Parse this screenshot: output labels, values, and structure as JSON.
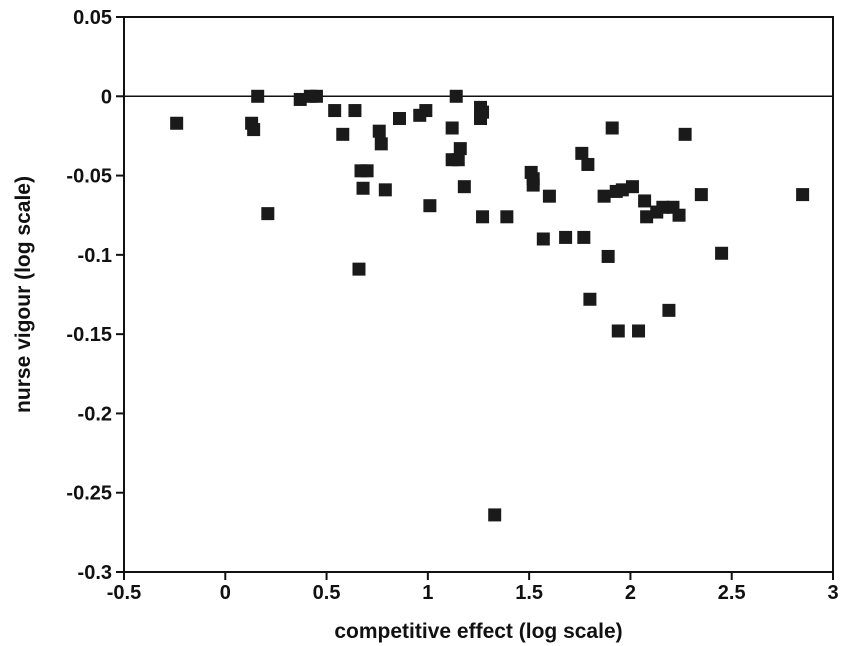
{
  "chart_data": {
    "type": "scatter",
    "xlabel": "competitive effect (log scale)",
    "ylabel": "nurse vigour (log scale)",
    "xlim": [
      -0.5,
      3
    ],
    "ylim": [
      -0.3,
      0.05
    ],
    "x_ticks": [
      "-0.5",
      "0",
      "0.5",
      "1",
      "1.5",
      "2",
      "2.5",
      "3"
    ],
    "y_ticks": [
      "0.05",
      "0",
      "-0.05",
      "-0.1",
      "-0.15",
      "-0.2",
      "-0.25",
      "-0.3"
    ],
    "x_tick_values": [
      -0.5,
      0,
      0.5,
      1,
      1.5,
      2,
      2.5,
      3
    ],
    "y_tick_values": [
      0.05,
      0,
      -0.05,
      -0.1,
      -0.15,
      -0.2,
      -0.25,
      -0.3
    ],
    "reference_line_y": 0,
    "grid": false,
    "marker": "square",
    "points": [
      [
        -0.24,
        -0.017
      ],
      [
        0.13,
        -0.017
      ],
      [
        0.14,
        -0.021
      ],
      [
        0.16,
        0.0
      ],
      [
        0.21,
        -0.074
      ],
      [
        0.37,
        -0.002
      ],
      [
        0.42,
        0.0
      ],
      [
        0.45,
        0.0
      ],
      [
        0.54,
        -0.009
      ],
      [
        0.58,
        -0.024
      ],
      [
        0.64,
        -0.009
      ],
      [
        0.66,
        -0.109
      ],
      [
        0.67,
        -0.047
      ],
      [
        0.68,
        -0.058
      ],
      [
        0.7,
        -0.047
      ],
      [
        0.76,
        -0.022
      ],
      [
        0.77,
        -0.03
      ],
      [
        0.79,
        -0.059
      ],
      [
        0.86,
        -0.014
      ],
      [
        0.96,
        -0.012
      ],
      [
        0.99,
        -0.009
      ],
      [
        1.01,
        -0.069
      ],
      [
        1.12,
        -0.02
      ],
      [
        1.12,
        -0.04
      ],
      [
        1.14,
        0.0
      ],
      [
        1.15,
        -0.04
      ],
      [
        1.16,
        -0.033
      ],
      [
        1.18,
        -0.057
      ],
      [
        1.26,
        -0.007
      ],
      [
        1.26,
        -0.014
      ],
      [
        1.27,
        -0.01
      ],
      [
        1.27,
        -0.076
      ],
      [
        1.33,
        -0.264
      ],
      [
        1.39,
        -0.076
      ],
      [
        1.51,
        -0.048
      ],
      [
        1.52,
        -0.052
      ],
      [
        1.52,
        -0.056
      ],
      [
        1.57,
        -0.09
      ],
      [
        1.6,
        -0.063
      ],
      [
        1.68,
        -0.089
      ],
      [
        1.76,
        -0.036
      ],
      [
        1.77,
        -0.089
      ],
      [
        1.79,
        -0.043
      ],
      [
        1.8,
        -0.128
      ],
      [
        1.87,
        -0.063
      ],
      [
        1.89,
        -0.101
      ],
      [
        1.91,
        -0.02
      ],
      [
        1.93,
        -0.06
      ],
      [
        1.94,
        -0.148
      ],
      [
        1.96,
        -0.059
      ],
      [
        2.01,
        -0.057
      ],
      [
        2.04,
        -0.148
      ],
      [
        2.07,
        -0.066
      ],
      [
        2.08,
        -0.076
      ],
      [
        2.13,
        -0.073
      ],
      [
        2.16,
        -0.07
      ],
      [
        2.19,
        -0.135
      ],
      [
        2.21,
        -0.07
      ],
      [
        2.24,
        -0.075
      ],
      [
        2.27,
        -0.024
      ],
      [
        2.35,
        -0.062
      ],
      [
        2.45,
        -0.099
      ],
      [
        2.85,
        -0.062
      ]
    ]
  }
}
